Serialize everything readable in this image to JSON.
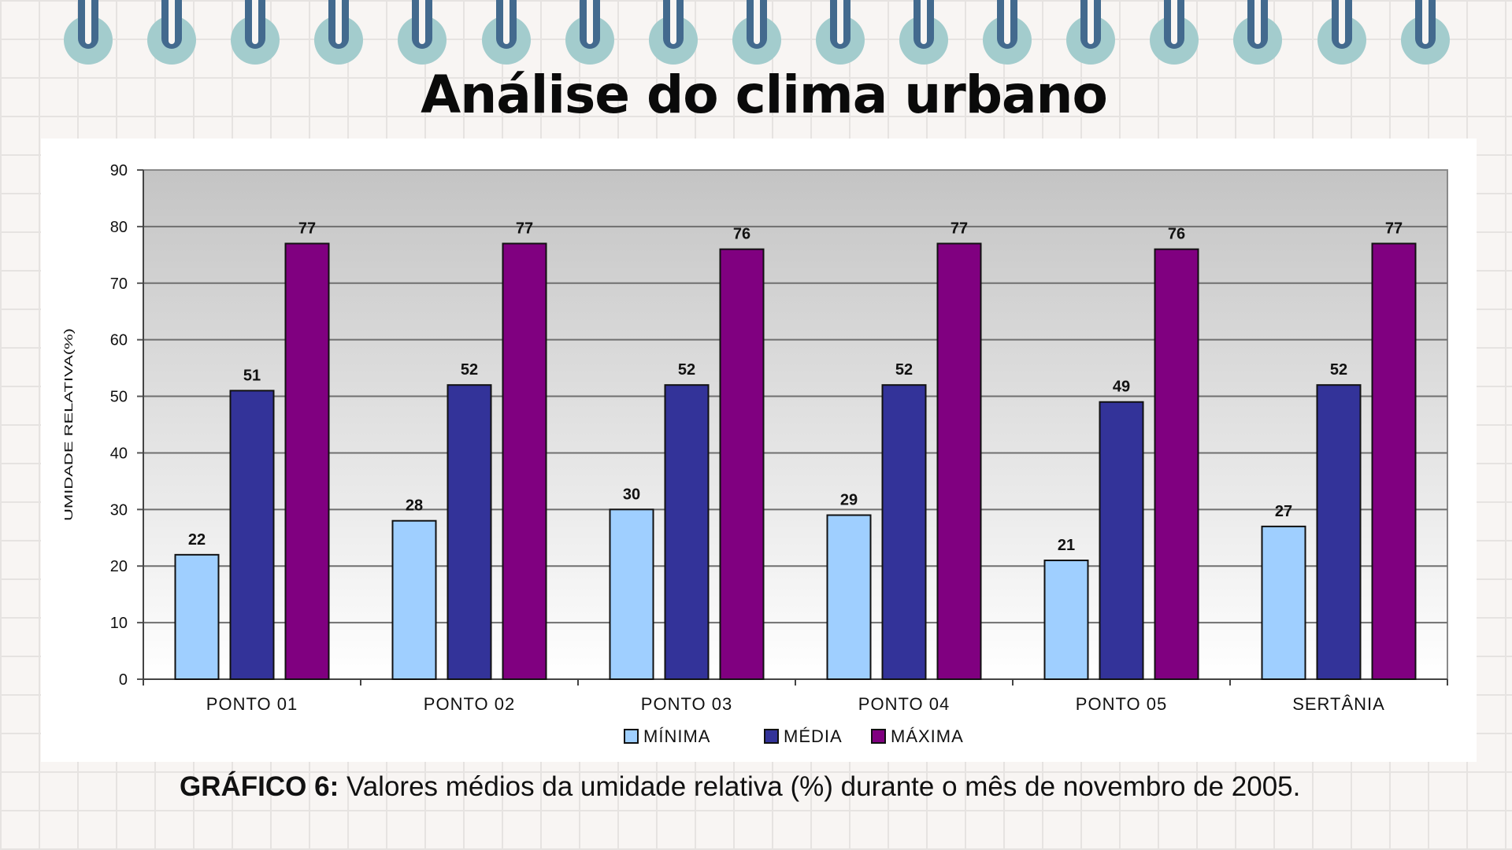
{
  "page": {
    "title": "Análise do clima urbano",
    "caption_label": "GRÁFICO 6:",
    "caption_text": " Valores médios da umidade relativa (%) durante o mês de novembro de 2005."
  },
  "chart_data": {
    "type": "bar",
    "title": "",
    "xlabel": "",
    "ylabel": "UMIDADE RELATIVA(%)",
    "ylim": [
      0,
      90
    ],
    "yticks": [
      0,
      10,
      20,
      30,
      40,
      50,
      60,
      70,
      80,
      90
    ],
    "categories": [
      "PONTO 01",
      "PONTO 02",
      "PONTO 03",
      "PONTO 04",
      "PONTO 05",
      "SERTÂNIA"
    ],
    "series": [
      {
        "name": "MÍNIMA",
        "color": "#9fcfff",
        "values": [
          22,
          28,
          30,
          29,
          21,
          27
        ]
      },
      {
        "name": "MÉDIA",
        "color": "#333399",
        "values": [
          51,
          52,
          52,
          52,
          49,
          52
        ]
      },
      {
        "name": "MÁXIMA",
        "color": "#800080",
        "values": [
          77,
          77,
          76,
          77,
          76,
          77
        ]
      }
    ],
    "grid": true,
    "legend": "bottom-center",
    "data_labels": true
  }
}
